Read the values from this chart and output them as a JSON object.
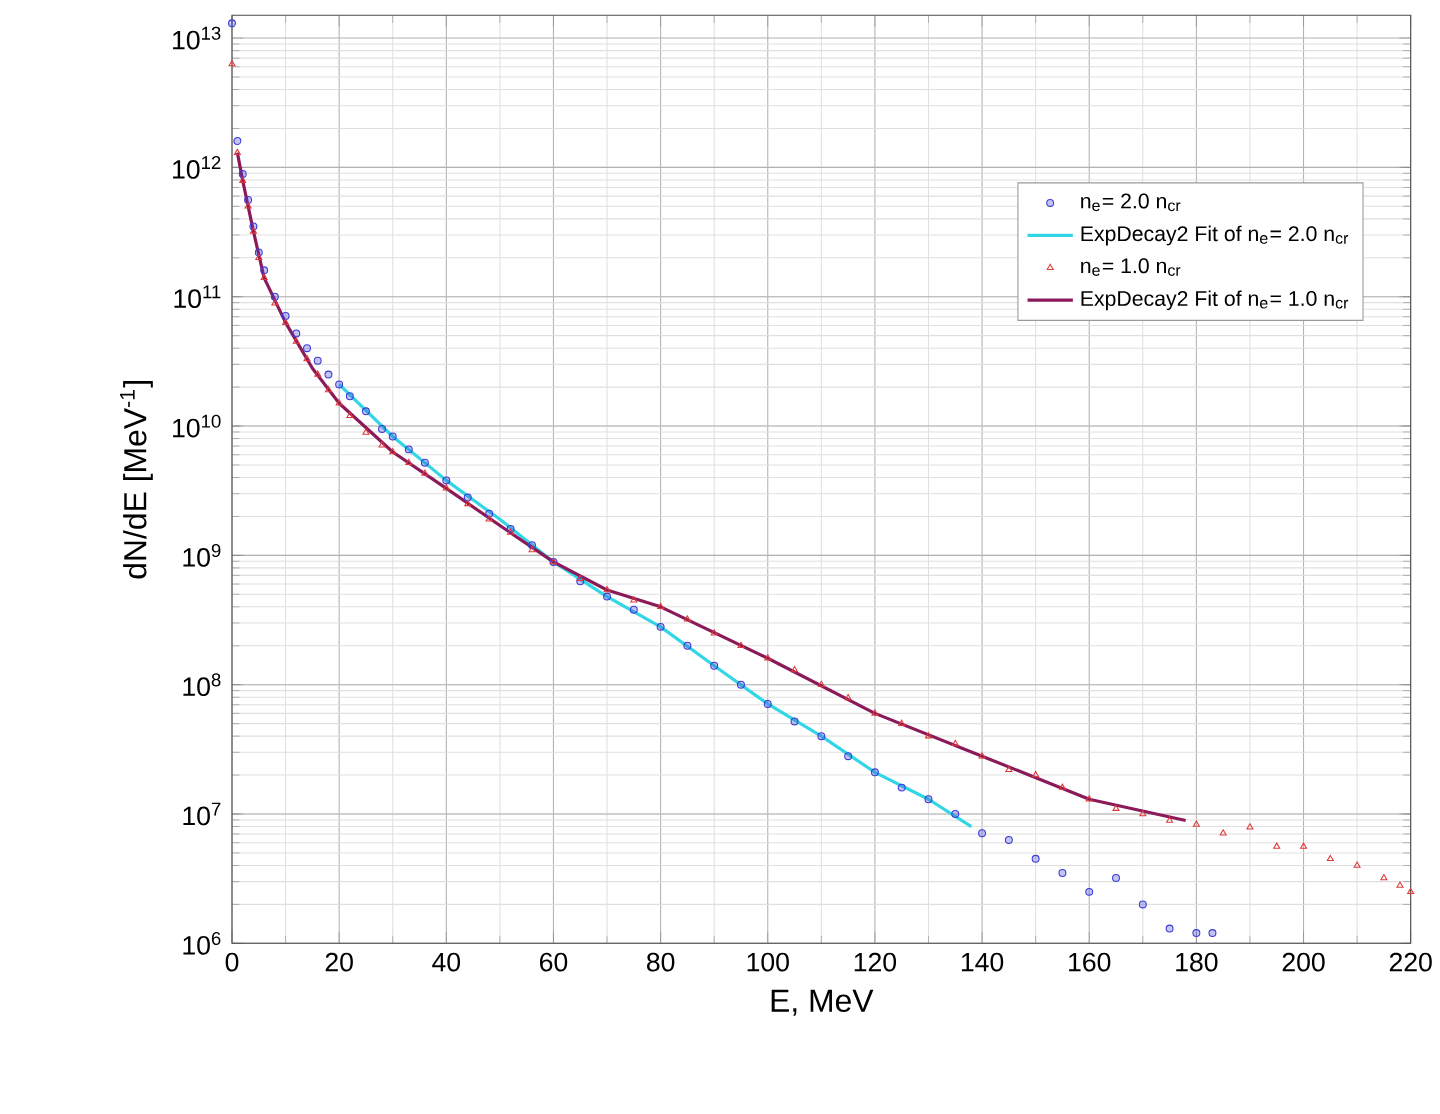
{
  "chart_data": {
    "type": "scatter",
    "xlabel": "E, MeV",
    "ylabel": "dN/dE  [MeV$^{-1}$]",
    "xlim": [
      0,
      220
    ],
    "ylim": [
      1000000.0,
      15000000000000.0
    ],
    "log": "y",
    "xticks": [
      0,
      20,
      40,
      60,
      80,
      100,
      120,
      140,
      160,
      180,
      200,
      220
    ],
    "yticks": [
      {
        "value": 1000000.0,
        "label": "10$^{6}$"
      },
      {
        "value": 10000000.0,
        "label": "10$^{7}$"
      },
      {
        "value": 100000000.0,
        "label": "10$^{8}$"
      },
      {
        "value": 1000000000.0,
        "label": "10$^{9}$"
      },
      {
        "value": 10000000000.0,
        "label": "10$^{10}$"
      },
      {
        "value": 100000000000.0,
        "label": "10$^{11}$"
      },
      {
        "value": 1000000000000.0,
        "label": "10$^{12}$"
      },
      {
        "value": 10000000000000.0,
        "label": "10$^{13}$"
      }
    ],
    "grid": true,
    "legend": "top right",
    "series": [
      {
        "name": "n$_{e}$= 2.0 n$_{cr}$",
        "marker": "circle",
        "color": "#3b3bd6",
        "x": [
          0,
          1,
          2,
          3,
          4,
          5,
          6,
          8,
          10,
          12,
          14,
          16,
          18,
          20,
          22,
          25,
          28,
          30,
          33,
          36,
          40,
          44,
          48,
          52,
          56,
          60,
          65,
          70,
          75,
          80,
          85,
          90,
          95,
          100,
          105,
          110,
          115,
          120,
          125,
          130,
          135,
          140,
          145,
          150,
          155,
          160,
          165,
          170,
          175,
          180,
          183
        ],
        "values": [
          13000000000000.0,
          1600000000000.0,
          890000000000.0,
          560000000000.0,
          350000000000.0,
          220000000000.0,
          160000000000.0,
          100000000000.0,
          71000000000.0,
          52000000000.0,
          40000000000.0,
          32000000000.0,
          25000000000.0,
          21000000000.0,
          17000000000.0,
          13000000000.0,
          9500000000.0,
          8300000000.0,
          6600000000.0,
          5200000000.0,
          3800000000.0,
          2800000000.0,
          2100000000.0,
          1600000000.0,
          1200000000.0,
          890000000.0,
          630000000.0,
          480000000.0,
          380000000.0,
          280000000.0,
          200000000.0,
          140000000.0,
          100000000.0,
          71000000.0,
          52000000.0,
          40000000.0,
          28000000.0,
          21000000.0,
          16000000.0,
          13000000.0,
          10000000.0,
          7100000.0,
          6300000.0,
          4500000.0,
          3500000.0,
          2500000.0,
          3200000.0,
          2000000.0,
          1300000.0,
          1200000.0,
          1200000.0
        ]
      },
      {
        "name": "ExpDecay2 Fit of n$_{e}$= 2.0 n$_{cr}$",
        "type": "line",
        "marker": "none",
        "color": "#33d6e6",
        "x": [
          20,
          30,
          40,
          50,
          60,
          70,
          80,
          90,
          100,
          110,
          120,
          130,
          138
        ],
        "values": [
          21000000000.0,
          8300000000.0,
          3800000000.0,
          1900000000.0,
          890000000.0,
          480000000.0,
          280000000.0,
          140000000.0,
          71000000.0,
          40000000.0,
          21000000.0,
          13000000.0,
          8000000.0
        ]
      },
      {
        "name": "n$_{e}$= 1.0 n$_{cr}$",
        "marker": "triangle",
        "color": "#e03838",
        "x": [
          0,
          1,
          2,
          3,
          4,
          5,
          6,
          8,
          10,
          12,
          14,
          16,
          18,
          20,
          22,
          25,
          28,
          30,
          33,
          36,
          40,
          44,
          48,
          52,
          56,
          60,
          65,
          70,
          75,
          80,
          85,
          90,
          95,
          100,
          105,
          110,
          115,
          120,
          125,
          130,
          135,
          140,
          145,
          150,
          155,
          160,
          165,
          170,
          175,
          180,
          185,
          190,
          195,
          200,
          205,
          210,
          215,
          218,
          220
        ],
        "values": [
          6300000000000.0,
          1300000000000.0,
          790000000000.0,
          500000000000.0,
          320000000000.0,
          200000000000.0,
          140000000000.0,
          89000000000.0,
          63000000000.0,
          45000000000.0,
          33000000000.0,
          25000000000.0,
          19000000000.0,
          15000000000.0,
          12000000000.0,
          8900000000.0,
          7100000000.0,
          6300000000.0,
          5200000000.0,
          4300000000.0,
          3300000000.0,
          2500000000.0,
          1900000000.0,
          1500000000.0,
          1100000000.0,
          890000000.0,
          660000000.0,
          540000000.0,
          450000000.0,
          400000000.0,
          320000000.0,
          250000000.0,
          200000000.0,
          160000000.0,
          130000000.0,
          100000000.0,
          79000000.0,
          60000000.0,
          50000000.0,
          40000000.0,
          35000000.0,
          28000000.0,
          22000000.0,
          20000000.0,
          16000000.0,
          13000000.0,
          11000000.0,
          10000000.0,
          8900000.0,
          8300000.0,
          7100000.0,
          7900000.0,
          5600000.0,
          5600000.0,
          4500000.0,
          4000000.0,
          3200000.0,
          2800000.0,
          2500000.0
        ]
      },
      {
        "name": "ExpDecay2 Fit of n$_{e}$= 1.0 n$_{cr}$",
        "type": "line",
        "marker": "none",
        "color": "#8b1a5a",
        "x": [
          1,
          2,
          4,
          6,
          10,
          15,
          20,
          30,
          40,
          50,
          60,
          70,
          80,
          100,
          120,
          140,
          160,
          178
        ],
        "values": [
          1300000000000.0,
          790000000000.0,
          320000000000.0,
          140000000000.0,
          63000000000.0,
          28000000000.0,
          15000000000.0,
          6300000000.0,
          3300000000.0,
          1700000000.0,
          890000000.0,
          540000000.0,
          400000000.0,
          160000000.0,
          60000000.0,
          28000000.0,
          13000000.0,
          8900000.0
        ]
      }
    ]
  }
}
